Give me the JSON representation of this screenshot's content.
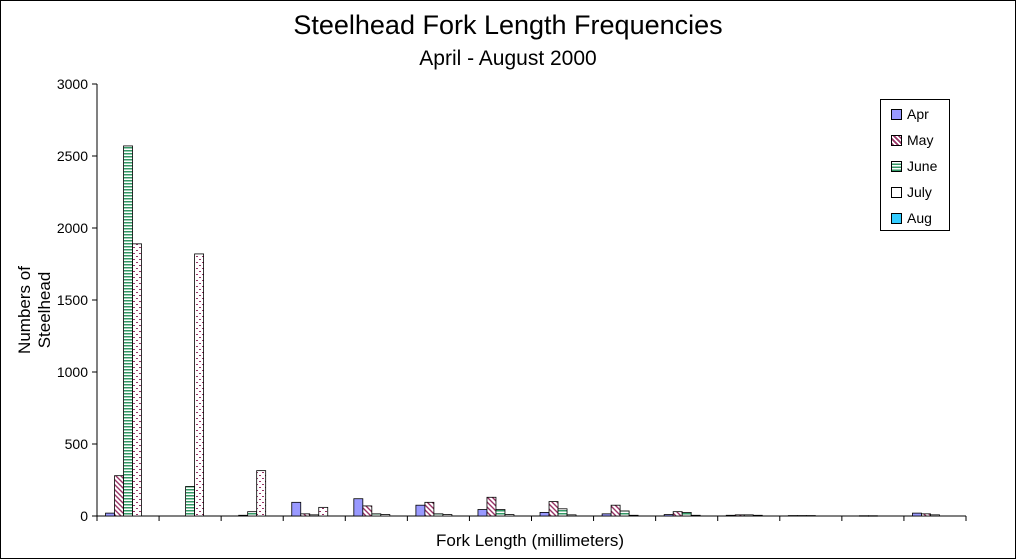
{
  "chart_data": {
    "type": "bar",
    "title": "Steelhead Fork Length Frequencies",
    "subtitle": "April - August 2000",
    "xlabel": "Fork Length (millimeters)",
    "ylabel": "Numbers of Steelhead",
    "ylim": [
      0,
      3000
    ],
    "yticks": [
      "0",
      "500",
      "1000",
      "1500",
      "2000",
      "2500",
      "3000"
    ],
    "category_count": 14,
    "grid": false,
    "legend_position": "top-right",
    "series": [
      {
        "name": "Apr",
        "color": "#9999ff",
        "pattern": "solid",
        "values": [
          20,
          0,
          0,
          95,
          120,
          75,
          45,
          25,
          15,
          10,
          5,
          3,
          0,
          20
        ]
      },
      {
        "name": "May",
        "color": "#993366",
        "pattern": "diagonal",
        "values": [
          280,
          0,
          5,
          15,
          70,
          95,
          130,
          100,
          75,
          30,
          8,
          3,
          2,
          15
        ]
      },
      {
        "name": "June",
        "color": "#339966",
        "pattern": "horizontal",
        "values": [
          2570,
          205,
          30,
          8,
          15,
          15,
          45,
          50,
          35,
          25,
          8,
          3,
          2,
          8
        ]
      },
      {
        "name": "July",
        "color": "#993366",
        "pattern": "dashes",
        "values": [
          1890,
          1820,
          315,
          60,
          10,
          10,
          10,
          8,
          5,
          5,
          5,
          0,
          0,
          0
        ]
      },
      {
        "name": "Aug",
        "color": "#33ccff",
        "pattern": "light",
        "values": [
          0,
          0,
          0,
          0,
          0,
          0,
          0,
          0,
          0,
          0,
          0,
          0,
          0,
          0
        ]
      }
    ]
  }
}
